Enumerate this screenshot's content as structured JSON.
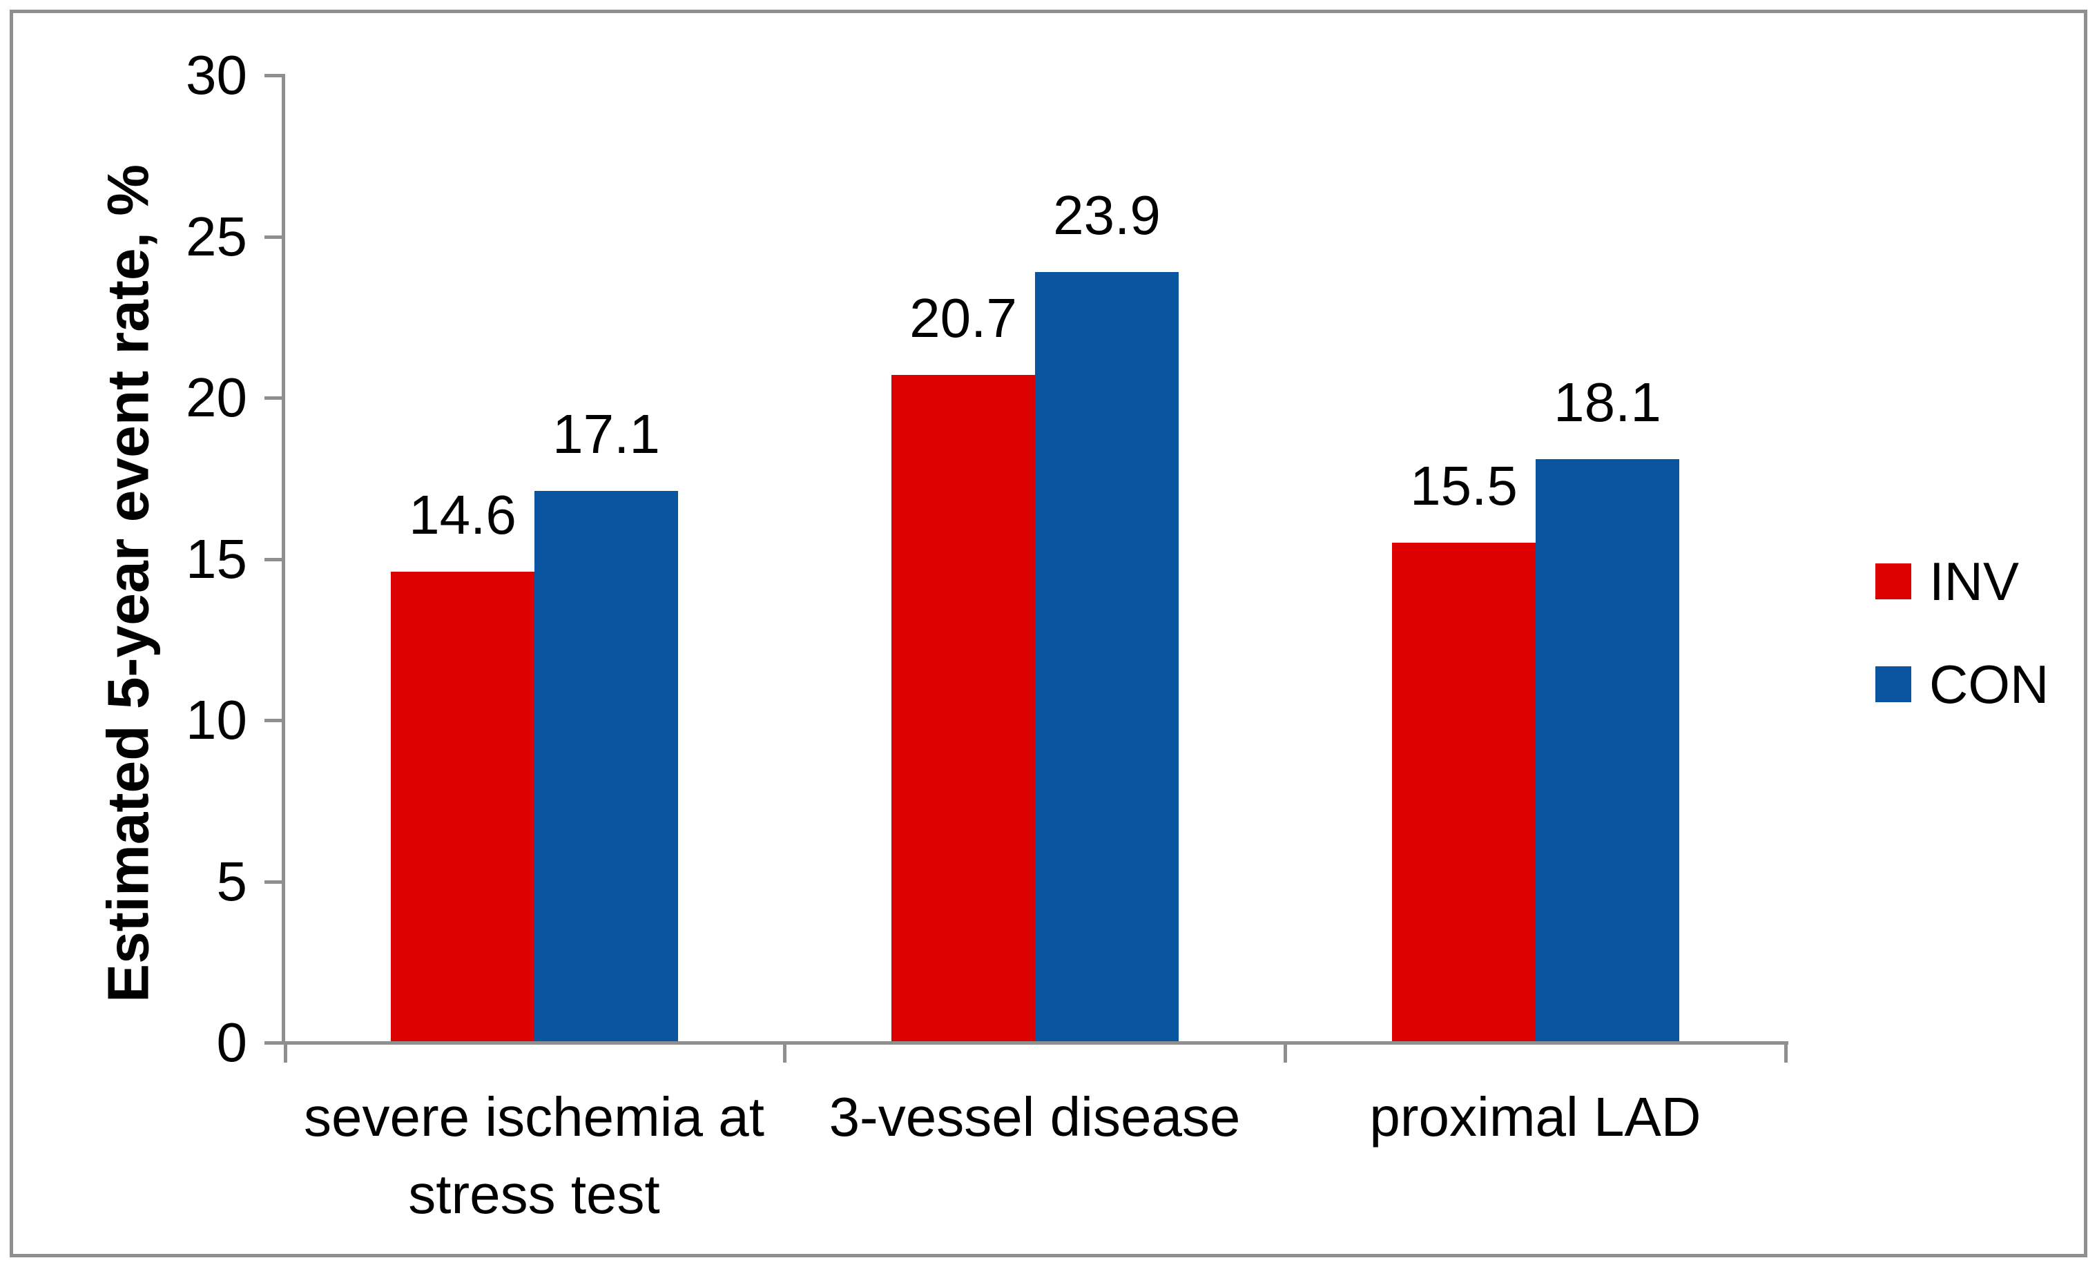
{
  "chart_data": {
    "type": "bar",
    "title": "",
    "categories": [
      "severe ischemia at\nstress test",
      "3-vessel disease",
      "proximal LAD"
    ],
    "series": [
      {
        "name": "INV",
        "color": "#dd0202",
        "values": [
          14.6,
          20.7,
          15.5
        ]
      },
      {
        "name": "CON",
        "color": "#0a55a0",
        "values": [
          17.1,
          23.9,
          18.1
        ]
      }
    ],
    "value_labels": {
      "INV": [
        "14.6",
        "20.7",
        "15.5"
      ],
      "CON": [
        "17.1",
        "23.9",
        "18.1"
      ]
    },
    "xlabel": "",
    "ylabel": "Estimated 5-year event rate, %",
    "ylim": [
      0,
      30
    ],
    "yticks": [
      "30",
      "25",
      "20",
      "15",
      "10",
      "5",
      "0"
    ],
    "grid": false,
    "legend_position": "right",
    "legend_entries": [
      "INV",
      "CON"
    ]
  },
  "colors": {
    "axis_gray": "#8f8f8f",
    "frame_gray": "#8f8f8f",
    "text_black": "#000000",
    "background": "#ffffff",
    "inv_red": "#dd0202",
    "con_blue": "#0a55a0"
  }
}
